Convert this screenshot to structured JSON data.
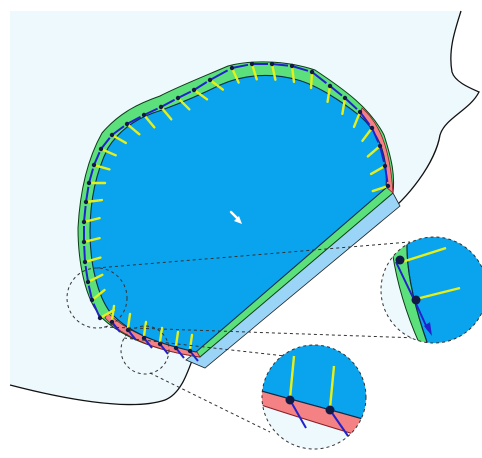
{
  "colors": {
    "background": "#ffffff",
    "region_fill": "#eef9fd",
    "boundary_stroke": "#111111",
    "body_fill": "#0aa4ee",
    "body_shadow": "#9ad4f6",
    "outer_band": "#5ce07c",
    "inner_band": "#f48183",
    "normal_ray": "#e5f01a",
    "motion_arrow": "#2222cc",
    "node": "#101a45",
    "velocity_arrow": "#ffffff",
    "zoom_border": "#333333"
  },
  "icons": {
    "velocity": "arrow-down-right-icon",
    "normals": "ray-glyph",
    "nodes": "dot-glyph"
  },
  "zoom_views": [
    {
      "name": "zoom-right",
      "shows": "left-boundary-detail"
    },
    {
      "name": "zoom-bottom",
      "shows": "bottom-boundary-detail"
    }
  ]
}
